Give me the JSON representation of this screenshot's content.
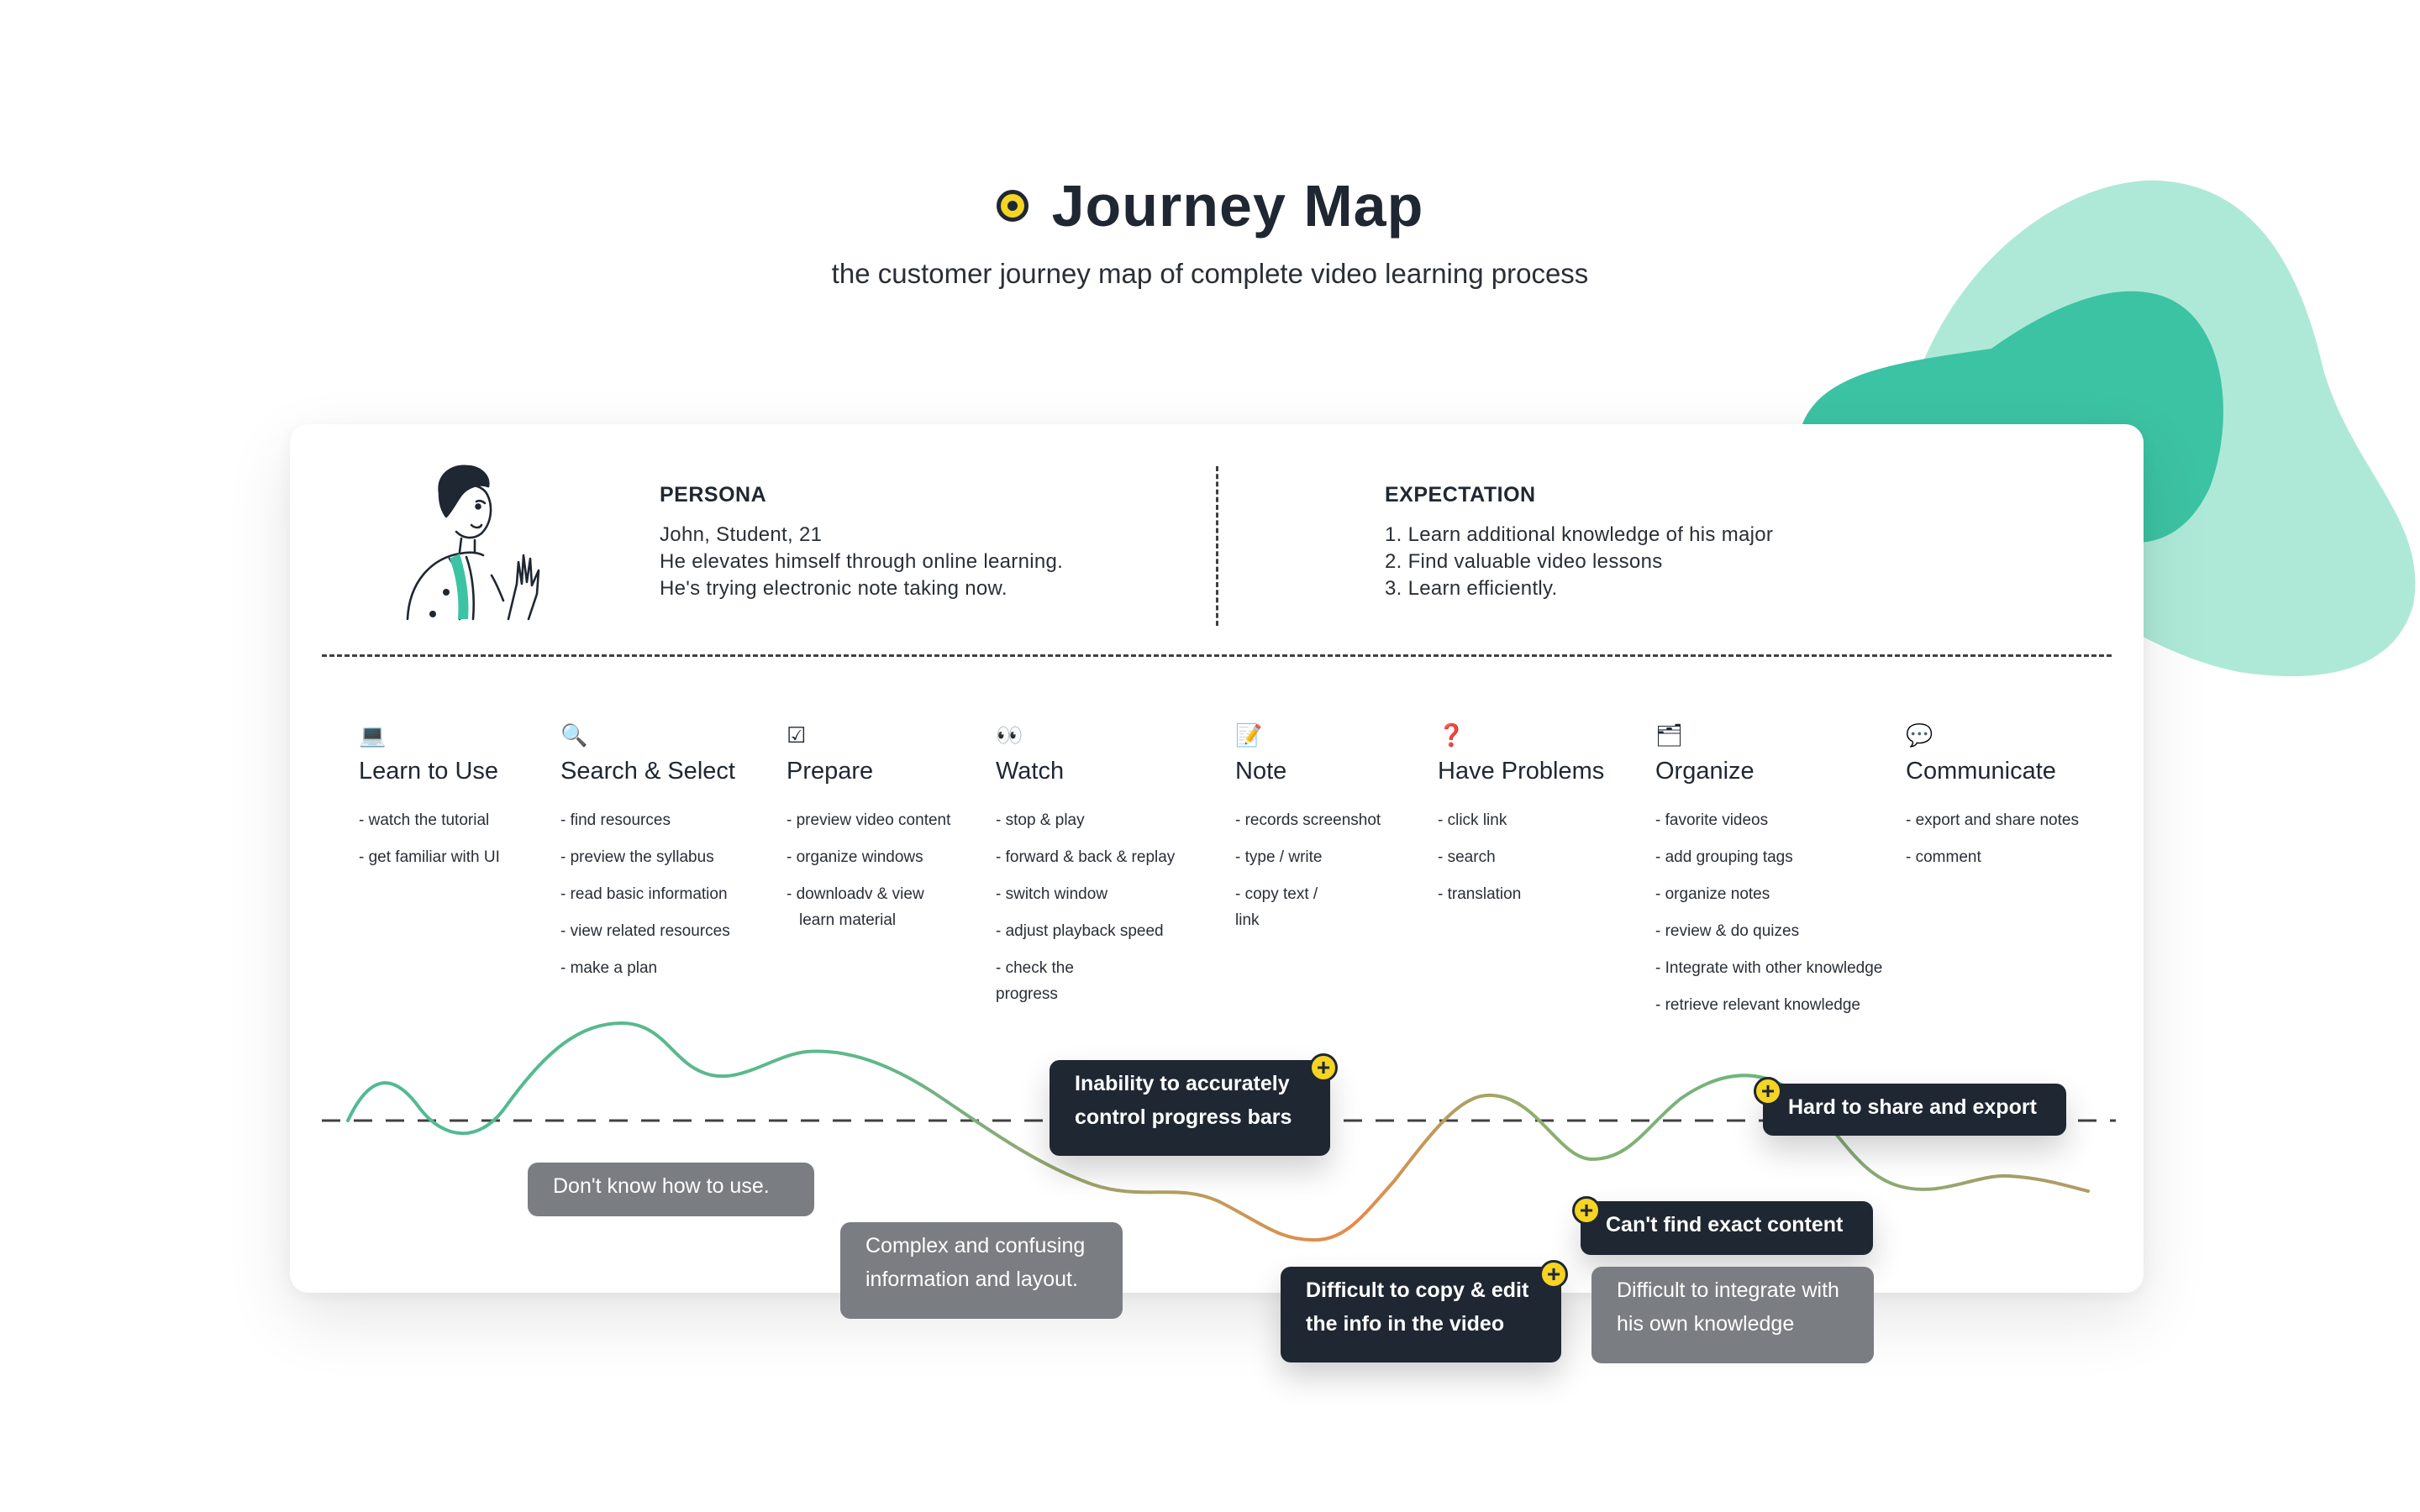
{
  "header": {
    "title": "Journey Map",
    "subtitle": "the customer journey map of  complete video learning process"
  },
  "persona": {
    "label": "PERSONA",
    "lines": [
      "John, Student, 21",
      "He elevates himself through online learning.",
      "He's trying  electronic note taking now."
    ]
  },
  "expectation": {
    "label": "EXPECTATION",
    "lines": [
      "1. Learn additional knowledge of his major",
      "2. Find valuable video lessons",
      "3. Learn efficiently."
    ]
  },
  "stages": [
    {
      "icon": "💻",
      "icon_name": "laptop-icon",
      "name": "Learn to Use",
      "items": [
        "- watch the tutorial",
        "- get familiar with UI"
      ]
    },
    {
      "icon": "🔍",
      "icon_name": "magnifier-icon",
      "name": "Search & Select",
      "items": [
        "- find resources",
        "- preview the syllabus",
        "- read basic information",
        "- view related resources",
        "- make a plan"
      ]
    },
    {
      "icon": "☑",
      "icon_name": "checkbox-icon",
      "name": "Prepare",
      "items": [
        "- preview video content",
        "- organize windows",
        "- downloadv & view",
        "learn material"
      ]
    },
    {
      "icon": "👀",
      "icon_name": "eyes-icon",
      "name": "Watch",
      "items": [
        "- stop & play",
        "- forward & back & replay",
        "- switch window",
        "- adjust playback speed",
        "- check the",
        "progress"
      ]
    },
    {
      "icon": "📝",
      "icon_name": "memo-icon",
      "name": "Note",
      "items": [
        "- records screenshot",
        "- type / write",
        "- copy text /",
        "link"
      ]
    },
    {
      "icon": "❓",
      "icon_name": "question-icon",
      "name": "Have Problems",
      "items": [
        "- click link",
        "- search",
        "- translation"
      ]
    },
    {
      "icon": "🗂",
      "icon_name": "folder-icon",
      "name": "Organize",
      "items": [
        "- favorite videos",
        "- add grouping tags",
        "- organize notes",
        "- review & do quizes",
        "- Integrate with other knowledge",
        "- retrieve relevant knowledge"
      ]
    },
    {
      "icon": "💬",
      "icon_name": "speech-bubble-icon",
      "name": "Communicate",
      "items": [
        "- export and share notes",
        "- comment"
      ]
    }
  ],
  "pain_points": [
    {
      "lines": [
        "Don't know how to use."
      ],
      "style": "light"
    },
    {
      "lines": [
        "Complex and confusing",
        "information and layout."
      ],
      "style": "light"
    },
    {
      "lines": [
        "Inability to accurately",
        "control progress bars"
      ],
      "style": "dark"
    },
    {
      "lines": [
        "Difficult to copy & edit",
        "the info in the video"
      ],
      "style": "dark"
    },
    {
      "lines": [
        "Can't find exact content"
      ],
      "style": "dark"
    },
    {
      "lines": [
        "Difficult to integrate with",
        "his own knowledge"
      ],
      "style": "light"
    },
    {
      "lines": [
        "Hard to share and export"
      ],
      "style": "dark"
    }
  ],
  "colors": {
    "accent_yellow": "#f5d423",
    "dark": "#1f2733",
    "gray_box": "#7a7d82",
    "blob_light": "#aee9d7",
    "blob_dark": "#3cc3a3",
    "curve_good": "#4fbb93",
    "curve_bad": "#e8894a"
  },
  "icons": {
    "title": "target-dot-icon",
    "add": "plus-circle-icon",
    "persona": "persona-illustration"
  }
}
